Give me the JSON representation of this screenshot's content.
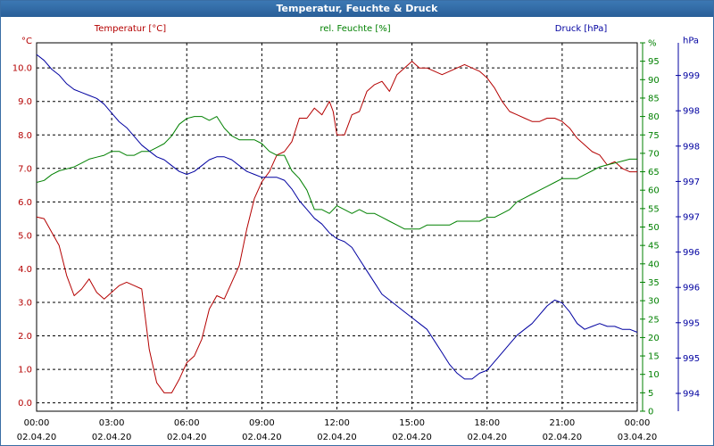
{
  "window": {
    "title": "Temperatur, Feuchte & Druck"
  },
  "colors": {
    "temp": "#b40000",
    "hum": "#008000",
    "pres": "#0000a0",
    "grid": "#000000"
  },
  "chart_data": {
    "type": "line",
    "title": "Temperatur, Feuchte & Druck",
    "grid": true,
    "x_axis": {
      "range": [
        "02.04.20 00:00",
        "03.04.20 00:00"
      ],
      "ticks": [
        {
          "time": "00:00",
          "date": "02.04.20"
        },
        {
          "time": "03:00",
          "date": "02.04.20"
        },
        {
          "time": "06:00",
          "date": "02.04.20"
        },
        {
          "time": "09:00",
          "date": "02.04.20"
        },
        {
          "time": "12:00",
          "date": "02.04.20"
        },
        {
          "time": "15:00",
          "date": "02.04.20"
        },
        {
          "time": "18:00",
          "date": "02.04.20"
        },
        {
          "time": "21:00",
          "date": "02.04.20"
        },
        {
          "time": "00:00",
          "date": "03.04.20"
        }
      ]
    },
    "axes": {
      "temp": {
        "unit": "°C",
        "ylim": [
          -0.25,
          10.75
        ],
        "ticks": [
          "0.0",
          "1.0",
          "2.0",
          "3.0",
          "4.0",
          "5.0",
          "6.0",
          "7.0",
          "8.0",
          "9.0",
          "10.0"
        ]
      },
      "hum": {
        "unit": "%",
        "ylim": [
          0,
          95
        ],
        "ticks": [
          "0",
          "5",
          "10",
          "15",
          "20",
          "25",
          "30",
          "35",
          "40",
          "45",
          "50",
          "55",
          "60",
          "65",
          "70",
          "75",
          "80",
          "85",
          "90",
          "95",
          "%"
        ]
      },
      "pres": {
        "unit": "hPa",
        "ylim": [
          993.5,
          999.8
        ],
        "ticks": [
          "994",
          "995",
          "995",
          "996",
          "996",
          "997",
          "997",
          "998",
          "998",
          "999",
          "hPa"
        ]
      }
    },
    "series": [
      {
        "name": "Temperatur [°C]",
        "axis": "temp",
        "x_hours": [
          0,
          0.3,
          0.6,
          0.9,
          1.2,
          1.5,
          1.8,
          2.1,
          2.4,
          2.7,
          3.0,
          3.3,
          3.6,
          3.9,
          4.2,
          4.5,
          4.8,
          5.1,
          5.4,
          5.7,
          6.0,
          6.3,
          6.6,
          6.9,
          7.2,
          7.5,
          7.8,
          8.1,
          8.4,
          8.7,
          9.0,
          9.3,
          9.6,
          9.9,
          10.2,
          10.5,
          10.8,
          11.1,
          11.4,
          11.7,
          11.85,
          12.0,
          12.3,
          12.6,
          12.9,
          13.2,
          13.5,
          13.8,
          14.1,
          14.4,
          14.7,
          15.0,
          15.3,
          15.6,
          15.9,
          16.2,
          16.5,
          16.8,
          17.1,
          17.4,
          17.7,
          18.0,
          18.3,
          18.6,
          18.9,
          19.2,
          19.5,
          19.8,
          20.1,
          20.4,
          20.7,
          21.0,
          21.3,
          21.6,
          21.9,
          22.2,
          22.5,
          22.8,
          23.1,
          23.4,
          23.7,
          24.0
        ],
        "values": [
          5.55,
          5.5,
          5.1,
          4.7,
          3.8,
          3.2,
          3.4,
          3.7,
          3.3,
          3.1,
          3.3,
          3.5,
          3.6,
          3.5,
          3.4,
          1.6,
          0.6,
          0.3,
          0.3,
          0.7,
          1.2,
          1.4,
          1.9,
          2.8,
          3.2,
          3.1,
          3.6,
          4.1,
          5.2,
          6.1,
          6.6,
          6.9,
          7.4,
          7.5,
          7.8,
          8.5,
          8.5,
          8.8,
          8.6,
          9.0,
          8.7,
          8.0,
          8.0,
          8.6,
          8.7,
          9.3,
          9.5,
          9.6,
          9.3,
          9.8,
          10.0,
          10.2,
          10.0,
          10.0,
          9.9,
          9.8,
          9.9,
          10.0,
          10.1,
          10.0,
          9.9,
          9.7,
          9.4,
          9.0,
          8.7,
          8.6,
          8.5,
          8.4,
          8.4,
          8.5,
          8.5,
          8.4,
          8.2,
          7.9,
          7.7,
          7.5,
          7.4,
          7.1,
          7.2,
          7.0,
          6.9,
          6.9
        ]
      },
      {
        "name": "rel. Feuchte [%]",
        "axis": "hum",
        "x_hours": [
          0,
          0.3,
          0.6,
          0.9,
          1.2,
          1.5,
          1.8,
          2.1,
          2.4,
          2.7,
          3.0,
          3.3,
          3.6,
          3.9,
          4.2,
          4.5,
          4.8,
          5.1,
          5.4,
          5.7,
          6.0,
          6.3,
          6.6,
          6.9,
          7.2,
          7.5,
          7.8,
          8.1,
          8.4,
          8.7,
          9.0,
          9.3,
          9.6,
          9.9,
          10.2,
          10.5,
          10.8,
          11.1,
          11.4,
          11.7,
          12.0,
          12.3,
          12.6,
          12.9,
          13.2,
          13.5,
          13.8,
          14.1,
          14.4,
          14.7,
          15.0,
          15.3,
          15.6,
          15.9,
          16.2,
          16.5,
          16.8,
          17.1,
          17.4,
          17.7,
          18.0,
          18.3,
          18.6,
          18.9,
          19.2,
          19.5,
          19.8,
          20.1,
          20.4,
          20.7,
          21.0,
          21.3,
          21.6,
          21.9,
          22.2,
          22.5,
          22.8,
          23.1,
          23.4,
          23.7,
          24.0
        ],
        "values": [
          59,
          59.5,
          61,
          62,
          62.5,
          63,
          64,
          65,
          65.5,
          66,
          67,
          67,
          66,
          66,
          67,
          67,
          68,
          69,
          71,
          74,
          75.5,
          76,
          76,
          75,
          76,
          73,
          71,
          70,
          70,
          70,
          69,
          67,
          66,
          66,
          62,
          60,
          57,
          52,
          52,
          51,
          53,
          52,
          51,
          52,
          51,
          51,
          50,
          49,
          48,
          47,
          47,
          47,
          48,
          48,
          48,
          48,
          49,
          49,
          49,
          49,
          50,
          50,
          51,
          52,
          54,
          55,
          56,
          57,
          58,
          59,
          60,
          60,
          60,
          61,
          62,
          63,
          63.5,
          64,
          64.5,
          65,
          65
        ]
      },
      {
        "name": "Druck [hPa]",
        "axis": "pres",
        "x_hours": [
          0,
          0.3,
          0.6,
          0.9,
          1.2,
          1.5,
          1.8,
          2.1,
          2.4,
          2.7,
          3.0,
          3.3,
          3.6,
          3.9,
          4.2,
          4.5,
          4.8,
          5.1,
          5.4,
          5.7,
          6.0,
          6.3,
          6.6,
          6.9,
          7.2,
          7.5,
          7.8,
          8.1,
          8.4,
          8.7,
          9.0,
          9.3,
          9.6,
          9.9,
          10.2,
          10.5,
          10.8,
          11.1,
          11.4,
          11.7,
          12.0,
          12.3,
          12.6,
          12.9,
          13.2,
          13.5,
          13.8,
          14.1,
          14.4,
          14.7,
          15.0,
          15.3,
          15.6,
          15.9,
          16.2,
          16.5,
          16.8,
          17.1,
          17.4,
          17.7,
          18.0,
          18.3,
          18.6,
          18.9,
          19.2,
          19.5,
          19.8,
          20.1,
          20.4,
          20.7,
          21.0,
          21.3,
          21.6,
          21.9,
          22.2,
          22.5,
          22.8,
          23.1,
          23.4,
          23.7,
          24.0
        ],
        "values": [
          999.6,
          999.5,
          999.35,
          999.25,
          999.1,
          999.0,
          998.95,
          998.9,
          998.85,
          998.75,
          998.6,
          998.45,
          998.35,
          998.2,
          998.05,
          997.95,
          997.85,
          997.8,
          997.7,
          997.6,
          997.55,
          997.6,
          997.7,
          997.8,
          997.85,
          997.85,
          997.8,
          997.7,
          997.6,
          997.55,
          997.5,
          997.5,
          997.5,
          997.45,
          997.3,
          997.1,
          996.95,
          996.8,
          996.7,
          996.55,
          996.45,
          996.4,
          996.3,
          996.1,
          995.9,
          995.7,
          995.5,
          995.4,
          995.3,
          995.2,
          995.1,
          995.0,
          994.9,
          994.7,
          994.5,
          994.3,
          994.15,
          994.05,
          994.05,
          994.15,
          994.2,
          994.35,
          994.5,
          994.65,
          994.8,
          994.9,
          995.0,
          995.15,
          995.3,
          995.4,
          995.35,
          995.2,
          995.0,
          994.9,
          994.95,
          995.0,
          994.95,
          994.95,
          994.9,
          994.9,
          994.85
        ]
      }
    ]
  }
}
